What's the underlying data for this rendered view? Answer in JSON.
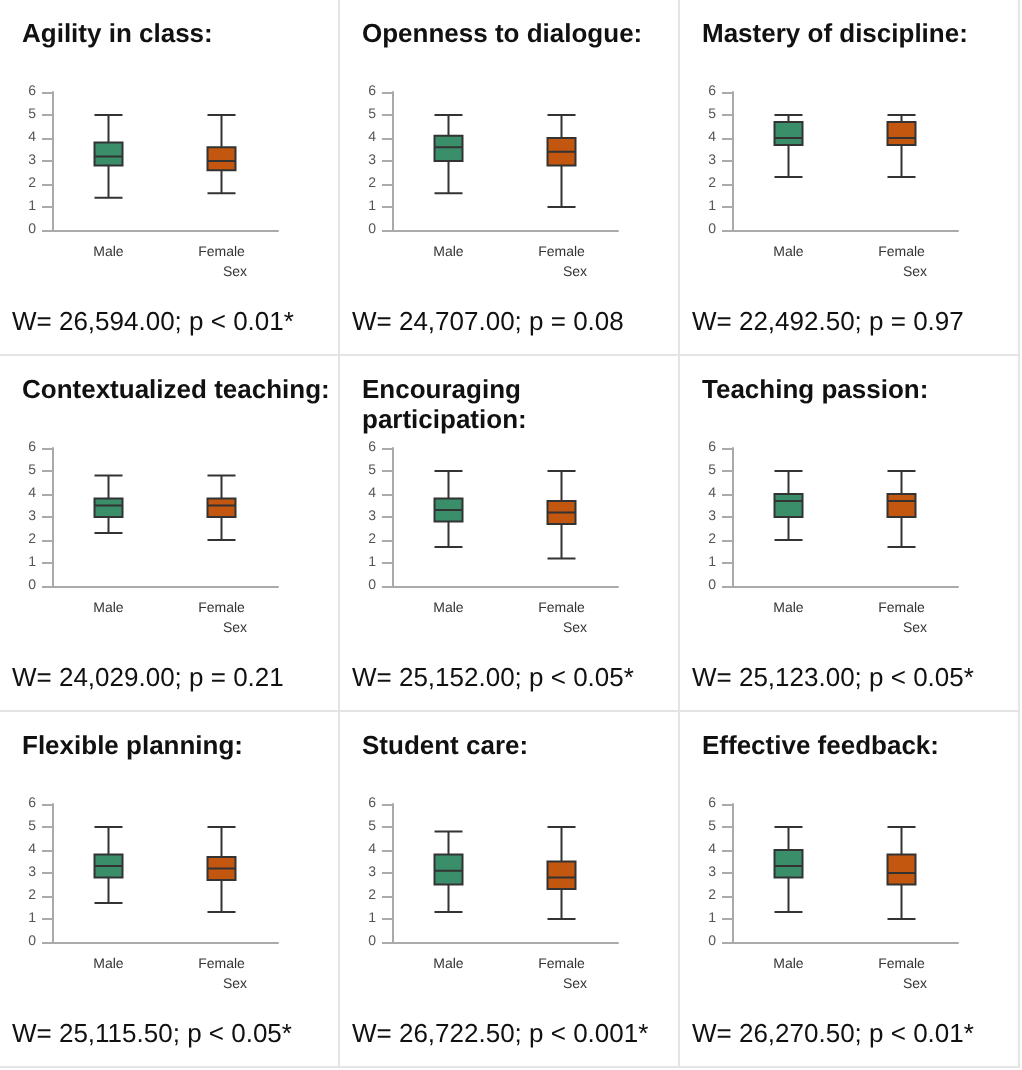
{
  "chart_data": [
    {
      "type": "box",
      "title": "Agility in class:",
      "xlabel": "Sex",
      "categories": [
        "Male",
        "Female"
      ],
      "ylim": [
        0,
        6
      ],
      "yticks": [
        0,
        1,
        2,
        3,
        4,
        5,
        6
      ],
      "colors": [
        "#3a8f6a",
        "#c4570f"
      ],
      "annotations": [
        "W= 26,594.00; p < 0.01*"
      ],
      "boxes": [
        {
          "low": 1.4,
          "q1": 2.8,
          "median": 3.2,
          "q3": 3.8,
          "high": 5
        },
        {
          "low": 1.6,
          "q1": 2.6,
          "median": 3.0,
          "q3": 3.6,
          "high": 5
        }
      ]
    },
    {
      "type": "box",
      "title": "Openness to dialogue:",
      "xlabel": "Sex",
      "categories": [
        "Male",
        "Female"
      ],
      "ylim": [
        0,
        6
      ],
      "yticks": [
        0,
        1,
        2,
        3,
        4,
        5,
        6
      ],
      "colors": [
        "#3a8f6a",
        "#c4570f"
      ],
      "annotations": [
        "W= 24,707.00; p = 0.08"
      ],
      "boxes": [
        {
          "low": 1.6,
          "q1": 3.0,
          "median": 3.6,
          "q3": 4.1,
          "high": 5
        },
        {
          "low": 1.0,
          "q1": 2.8,
          "median": 3.4,
          "q3": 4.0,
          "high": 5
        }
      ]
    },
    {
      "type": "box",
      "title": "Mastery of discipline:",
      "xlabel": "Sex",
      "categories": [
        "Male",
        "Female"
      ],
      "ylim": [
        0,
        6
      ],
      "yticks": [
        0,
        1,
        2,
        3,
        4,
        5,
        6
      ],
      "colors": [
        "#3a8f6a",
        "#c4570f"
      ],
      "annotations": [
        "W= 22,492.50; p = 0.97"
      ],
      "boxes": [
        {
          "low": 2.3,
          "q1": 3.7,
          "median": 4.0,
          "q3": 4.7,
          "high": 5
        },
        {
          "low": 2.3,
          "q1": 3.7,
          "median": 4.0,
          "q3": 4.7,
          "high": 5
        }
      ]
    },
    {
      "type": "box",
      "title": "Contextualized teaching:",
      "xlabel": "Sex",
      "categories": [
        "Male",
        "Female"
      ],
      "ylim": [
        0,
        6
      ],
      "yticks": [
        0,
        1,
        2,
        3,
        4,
        5,
        6
      ],
      "colors": [
        "#3a8f6a",
        "#c4570f"
      ],
      "annotations": [
        "W= 24,029.00; p = 0.21"
      ],
      "boxes": [
        {
          "low": 2.3,
          "q1": 3.0,
          "median": 3.5,
          "q3": 3.8,
          "high": 4.8
        },
        {
          "low": 2.0,
          "q1": 3.0,
          "median": 3.5,
          "q3": 3.8,
          "high": 4.8
        }
      ]
    },
    {
      "type": "box",
      "title": "Encouraging participation:",
      "xlabel": "Sex",
      "categories": [
        "Male",
        "Female"
      ],
      "ylim": [
        0,
        6
      ],
      "yticks": [
        0,
        1,
        2,
        3,
        4,
        5,
        6
      ],
      "colors": [
        "#3a8f6a",
        "#c4570f"
      ],
      "annotations": [
        "W= 25,152.00; p < 0.05*"
      ],
      "boxes": [
        {
          "low": 1.7,
          "q1": 2.8,
          "median": 3.3,
          "q3": 3.8,
          "high": 5
        },
        {
          "low": 1.2,
          "q1": 2.7,
          "median": 3.2,
          "q3": 3.7,
          "high": 5
        }
      ]
    },
    {
      "type": "box",
      "title": "Teaching passion:",
      "xlabel": "Sex",
      "categories": [
        "Male",
        "Female"
      ],
      "ylim": [
        0,
        6
      ],
      "yticks": [
        0,
        1,
        2,
        3,
        4,
        5,
        6
      ],
      "colors": [
        "#3a8f6a",
        "#c4570f"
      ],
      "annotations": [
        "W= 25,123.00; p < 0.05*"
      ],
      "boxes": [
        {
          "low": 2.0,
          "q1": 3.0,
          "median": 3.7,
          "q3": 4.0,
          "high": 5
        },
        {
          "low": 1.7,
          "q1": 3.0,
          "median": 3.7,
          "q3": 4.0,
          "high": 5
        }
      ]
    },
    {
      "type": "box",
      "title": "Flexible planning:",
      "xlabel": "Sex",
      "categories": [
        "Male",
        "Female"
      ],
      "ylim": [
        0,
        6
      ],
      "yticks": [
        0,
        1,
        2,
        3,
        4,
        5,
        6
      ],
      "colors": [
        "#3a8f6a",
        "#c4570f"
      ],
      "annotations": [
        "W= 25,115.50; p < 0.05*"
      ],
      "boxes": [
        {
          "low": 1.7,
          "q1": 2.8,
          "median": 3.3,
          "q3": 3.8,
          "high": 5
        },
        {
          "low": 1.3,
          "q1": 2.7,
          "median": 3.2,
          "q3": 3.7,
          "high": 5
        }
      ]
    },
    {
      "type": "box",
      "title": "Student care:",
      "xlabel": "Sex",
      "categories": [
        "Male",
        "Female"
      ],
      "ylim": [
        0,
        6
      ],
      "yticks": [
        0,
        1,
        2,
        3,
        4,
        5,
        6
      ],
      "colors": [
        "#3a8f6a",
        "#c4570f"
      ],
      "annotations": [
        "W= 26,722.50; p < 0.001*"
      ],
      "boxes": [
        {
          "low": 1.3,
          "q1": 2.5,
          "median": 3.1,
          "q3": 3.8,
          "high": 4.8
        },
        {
          "low": 1.0,
          "q1": 2.3,
          "median": 2.8,
          "q3": 3.5,
          "high": 5
        }
      ]
    },
    {
      "type": "box",
      "title": "Effective feedback:",
      "xlabel": "Sex",
      "categories": [
        "Male",
        "Female"
      ],
      "ylim": [
        0,
        6
      ],
      "yticks": [
        0,
        1,
        2,
        3,
        4,
        5,
        6
      ],
      "colors": [
        "#3a8f6a",
        "#c4570f"
      ],
      "annotations": [
        "W= 26,270.50; p < 0.01*"
      ],
      "boxes": [
        {
          "low": 1.3,
          "q1": 2.8,
          "median": 3.3,
          "q3": 4.0,
          "high": 5
        },
        {
          "low": 1.0,
          "q1": 2.5,
          "median": 3.0,
          "q3": 3.8,
          "high": 5
        }
      ]
    }
  ]
}
